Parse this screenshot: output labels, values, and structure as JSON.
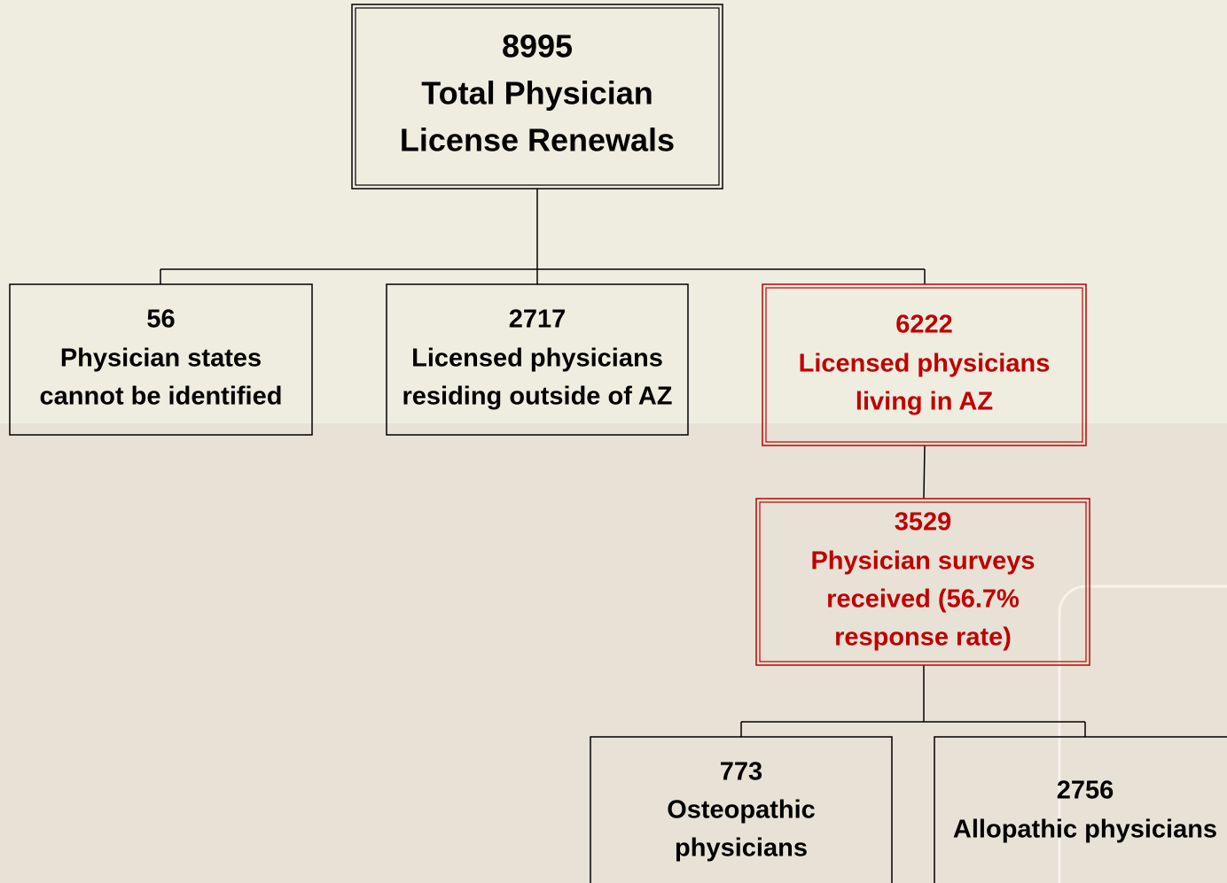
{
  "nodes": [
    {
      "count": "8995",
      "lines": [
        "Total Physician",
        "License Renewals"
      ]
    },
    {
      "count": "56",
      "lines": [
        "Physician states",
        "cannot be identified"
      ]
    },
    {
      "count": "2717",
      "lines": [
        "Licensed physicians",
        "residing outside of AZ"
      ]
    },
    {
      "count": "6222",
      "lines": [
        "Licensed physicians",
        "living in AZ"
      ]
    },
    {
      "count": "3529",
      "lines": [
        "Physician surveys",
        "received (56.7%",
        "response rate)"
      ]
    },
    {
      "count": "773",
      "lines": [
        "Osteopathic",
        "physicians"
      ]
    },
    {
      "count": "2756",
      "lines": [
        "Allopathic physicians"
      ]
    }
  ]
}
